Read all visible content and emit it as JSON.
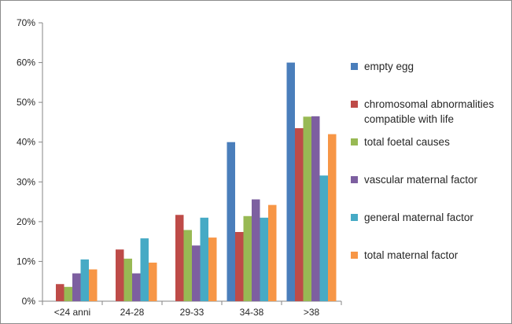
{
  "chart_data": {
    "type": "bar",
    "categories": [
      "<24 anni",
      "24-28",
      "29-33",
      "34-38",
      ">38"
    ],
    "series": [
      {
        "name": "empty egg",
        "color": "#4a7ebb",
        "values": [
          0,
          0,
          0,
          40,
          60
        ]
      },
      {
        "name": "chromosomal abnormalities compatible with life",
        "color": "#be4b48",
        "values": [
          4.3,
          13,
          21.7,
          17.4,
          43.5
        ]
      },
      {
        "name": "total foetal causes",
        "color": "#98b954",
        "values": [
          3.6,
          10.7,
          17.9,
          21.4,
          46.4
        ]
      },
      {
        "name": "vascular maternal factor",
        "color": "#7d5fa0",
        "values": [
          7,
          7,
          14,
          25.6,
          46.5
        ]
      },
      {
        "name": "general maternal factor",
        "color": "#46aac5",
        "values": [
          10.5,
          15.8,
          21,
          21,
          31.6
        ]
      },
      {
        "name": "total maternal factor",
        "color": "#f79646",
        "values": [
          8,
          9.7,
          16,
          24.2,
          42
        ]
      }
    ],
    "yticks": [
      "0%",
      "10%",
      "20%",
      "30%",
      "40%",
      "50%",
      "60%",
      "70%"
    ],
    "ylim": [
      0,
      70
    ],
    "ygrid": false,
    "legend_position": "right"
  }
}
